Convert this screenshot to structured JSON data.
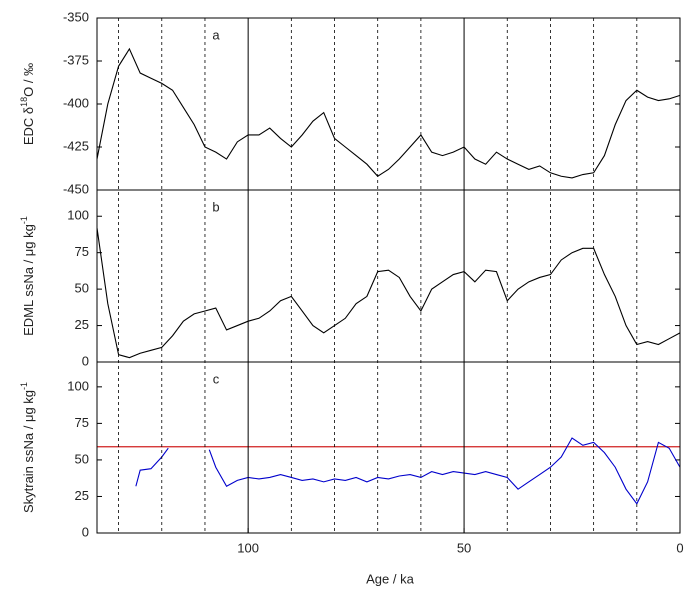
{
  "chart_data": {
    "type": "stacked-line",
    "x_label": "Age / ka",
    "xlim": [
      135,
      0
    ],
    "xticks": [
      100,
      50,
      0
    ],
    "solid_lines": [
      100,
      50
    ],
    "dashed_lines": [
      130,
      120,
      110,
      90,
      80,
      70,
      60,
      40,
      30,
      20,
      10
    ],
    "panels": [
      {
        "letter": "a",
        "y_label": [
          "EDC δ",
          "18",
          "O / ‰"
        ],
        "ylim": [
          -450,
          -350
        ],
        "yticks": [
          -450,
          -425,
          -400,
          -375,
          -350
        ],
        "series": [
          {
            "color": "#000000",
            "x": [
              135,
              132.5,
              130,
              127.5,
              125,
              122.5,
              120,
              117.5,
              115,
              112.5,
              110,
              107.5,
              105,
              102.5,
              100,
              97.5,
              95,
              92.5,
              90,
              87.5,
              85,
              82.5,
              80,
              77.5,
              75,
              72.5,
              70,
              67.5,
              65,
              62.5,
              60,
              57.5,
              55,
              52.5,
              50,
              47.5,
              45,
              42.5,
              40,
              37.5,
              35,
              32.5,
              30,
              27.5,
              25,
              22.5,
              20,
              17.5,
              15,
              12.5,
              10,
              7.5,
              5,
              2.5,
              0
            ],
            "values": [
              -432,
              -400,
              -378,
              -368,
              -382,
              -385,
              -388,
              -392,
              -402,
              -412,
              -425,
              -428,
              -432,
              -422,
              -418,
              -418,
              -414,
              -420,
              -425,
              -418,
              -410,
              -405,
              -420,
              -425,
              -430,
              -435,
              -442,
              -438,
              -432,
              -425,
              -418,
              -428,
              -430,
              -428,
              -425,
              -432,
              -435,
              -428,
              -432,
              -435,
              -438,
              -436,
              -440,
              -442,
              -443,
              -441,
              -440,
              -430,
              -412,
              -398,
              -392,
              -396,
              -398,
              -397,
              -395
            ]
          }
        ]
      },
      {
        "letter": "b",
        "y_label": [
          "EDML ssNa / μg kg",
          "-1"
        ],
        "ylim": [
          0,
          118
        ],
        "yticks": [
          0,
          25,
          50,
          75,
          100
        ],
        "series": [
          {
            "color": "#000000",
            "x": [
              135,
              132.5,
              130,
              127.5,
              125,
              122.5,
              120,
              117.5,
              115,
              112.5,
              110,
              107.5,
              105,
              102.5,
              100,
              97.5,
              95,
              92.5,
              90,
              87.5,
              85,
              82.5,
              80,
              77.5,
              75,
              72.5,
              70,
              67.5,
              65,
              62.5,
              60,
              57.5,
              55,
              52.5,
              50,
              47.5,
              45,
              42.5,
              40,
              37.5,
              35,
              32.5,
              30,
              27.5,
              25,
              22.5,
              20,
              17.5,
              15,
              12.5,
              10,
              7.5,
              5,
              2.5,
              0
            ],
            "values": [
              92,
              40,
              5,
              3,
              6,
              8,
              10,
              18,
              28,
              33,
              35,
              37,
              22,
              25,
              28,
              30,
              35,
              42,
              45,
              35,
              25,
              20,
              25,
              30,
              40,
              45,
              62,
              63,
              58,
              45,
              35,
              50,
              55,
              60,
              62,
              55,
              63,
              62,
              42,
              50,
              55,
              58,
              60,
              70,
              75,
              78,
              78,
              60,
              45,
              25,
              12,
              14,
              12,
              16,
              20
            ]
          }
        ]
      },
      {
        "letter": "c",
        "y_label": [
          "Skytrain ssNa / μg kg",
          "-1"
        ],
        "ylim": [
          0,
          117
        ],
        "yticks": [
          0,
          25,
          50,
          75,
          100
        ],
        "hline": {
          "value": 59,
          "color": "#d02020"
        },
        "series": [
          {
            "color": "#0000cc",
            "x": [
              126,
              125,
              122.5,
              120,
              118.5,
              115,
              109,
              107.5,
              105,
              102.5,
              100,
              97.5,
              95,
              92.5,
              90,
              87.5,
              85,
              82.5,
              80,
              77.5,
              75,
              72.5,
              70,
              67.5,
              65,
              62.5,
              60,
              57.5,
              55,
              52.5,
              50,
              47.5,
              45,
              42.5,
              40,
              37.5,
              35,
              32.5,
              30,
              27.5,
              25,
              22.5,
              20,
              17.5,
              15,
              12.5,
              10,
              7.5,
              5,
              2.5,
              0
            ],
            "values": [
              32,
              43,
              44,
              52,
              58,
              null,
              57,
              45,
              32,
              36,
              38,
              37,
              38,
              40,
              38,
              36,
              37,
              35,
              37,
              36,
              38,
              35,
              38,
              37,
              39,
              40,
              38,
              42,
              40,
              42,
              41,
              40,
              42,
              40,
              38,
              30,
              35,
              40,
              45,
              52,
              65,
              60,
              62,
              55,
              45,
              30,
              20,
              35,
              62,
              58,
              45
            ]
          }
        ]
      }
    ]
  }
}
